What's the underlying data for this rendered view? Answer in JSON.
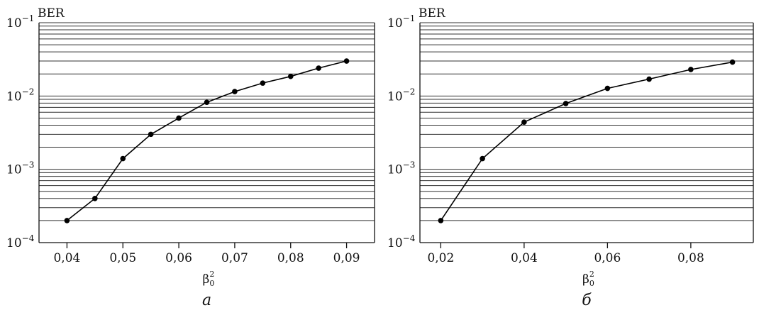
{
  "chart_data": [
    {
      "type": "line",
      "ylabel": "BER",
      "xlabel_base": "β",
      "xlabel_sub": "0",
      "xlabel_sup": "2",
      "caption": "а",
      "yscale": "log",
      "ylim": [
        0.0001,
        0.1
      ],
      "xlim": [
        0.035,
        0.095
      ],
      "grid": true,
      "y_ticks": [
        {
          "base": "10",
          "exp": "−1",
          "value": 0.1
        },
        {
          "base": "10",
          "exp": "−2",
          "value": 0.01
        },
        {
          "base": "10",
          "exp": "−3",
          "value": 0.001
        },
        {
          "base": "10",
          "exp": "−4",
          "value": 0.0001
        }
      ],
      "x_ticks": [
        {
          "label": "0,04",
          "value": 0.04
        },
        {
          "label": "0,05",
          "value": 0.05
        },
        {
          "label": "0,06",
          "value": 0.06
        },
        {
          "label": "0,07",
          "value": 0.07
        },
        {
          "label": "0,08",
          "value": 0.08
        },
        {
          "label": "0,09",
          "value": 0.09
        }
      ],
      "x": [
        0.04,
        0.045,
        0.05,
        0.055,
        0.06,
        0.065,
        0.07,
        0.075,
        0.08,
        0.085,
        0.09
      ],
      "y": [
        0.0002,
        0.0004,
        0.0014,
        0.003,
        0.005,
        0.0082,
        0.0115,
        0.015,
        0.0185,
        0.024,
        0.03
      ]
    },
    {
      "type": "line",
      "ylabel": "BER",
      "xlabel_base": "β",
      "xlabel_sub": "0",
      "xlabel_sup": "2",
      "caption": "б",
      "yscale": "log",
      "ylim": [
        0.0001,
        0.1
      ],
      "xlim": [
        0.015,
        0.095
      ],
      "grid": true,
      "y_ticks": [
        {
          "base": "10",
          "exp": "−1",
          "value": 0.1
        },
        {
          "base": "10",
          "exp": "−2",
          "value": 0.01
        },
        {
          "base": "10",
          "exp": "−3",
          "value": 0.001
        },
        {
          "base": "10",
          "exp": "−4",
          "value": 0.0001
        }
      ],
      "x_ticks": [
        {
          "label": "0,02",
          "value": 0.02
        },
        {
          "label": "0,04",
          "value": 0.04
        },
        {
          "label": "0,06",
          "value": 0.06
        },
        {
          "label": "0,08",
          "value": 0.08
        }
      ],
      "x": [
        0.02,
        0.03,
        0.04,
        0.05,
        0.06,
        0.07,
        0.08,
        0.09
      ],
      "y": [
        0.0002,
        0.0014,
        0.0044,
        0.0079,
        0.0127,
        0.017,
        0.023,
        0.029
      ]
    }
  ]
}
